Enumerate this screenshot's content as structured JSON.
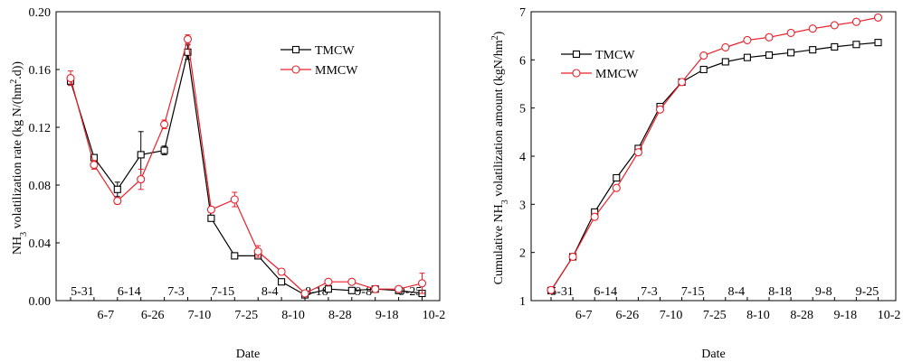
{
  "chart_data": [
    {
      "type": "line",
      "xlabel": "Date",
      "ylabel_main": "NH",
      "ylabel_sub": "3",
      "ylabel_mid": " volatilization rate (kg N/(hm",
      "ylabel_sup": "2",
      "ylabel_end": ".d))",
      "ylim": [
        0,
        0.2
      ],
      "yticks": [
        "0.00",
        "0.04",
        "0.08",
        "0.12",
        "0.16",
        "0.20"
      ],
      "x_labels_top": [
        "5-31",
        "6-14",
        "7-3",
        "7-15",
        "8-4",
        "8-18",
        "9-8",
        "9-25"
      ],
      "x_labels_bottom": [
        "6-7",
        "6-26",
        "7-10",
        "7-25",
        "8-10",
        "8-28",
        "9-18",
        "10-2"
      ],
      "legend_position": "top-right",
      "series": [
        {
          "name": "TMCW",
          "color": "#000000",
          "marker": "square",
          "values": [
            0.152,
            0.099,
            0.077,
            0.101,
            0.104,
            0.172,
            0.057,
            0.031,
            0.031,
            0.013,
            0.004,
            0.008,
            0.007,
            0.008,
            0.007,
            0.005
          ],
          "errors": [
            0.003,
            0.002,
            0.005,
            0.016,
            0.003,
            0.005,
            0.002,
            0.001,
            0.002,
            0.001,
            0.001,
            0.001,
            0.001,
            0.001,
            0.001,
            0.001
          ]
        },
        {
          "name": "MMCW",
          "color": "#e8202a",
          "marker": "circle",
          "values": [
            0.154,
            0.094,
            0.069,
            0.084,
            0.122,
            0.181,
            0.063,
            0.07,
            0.034,
            0.02,
            0.005,
            0.013,
            0.013,
            0.008,
            0.008,
            0.012
          ],
          "errors": [
            0.005,
            0.003,
            0.002,
            0.007,
            0.003,
            0.003,
            0.002,
            0.005,
            0.004,
            0.002,
            0.001,
            0.001,
            0.001,
            0.001,
            0.001,
            0.007
          ]
        }
      ]
    },
    {
      "type": "line",
      "xlabel": "Date",
      "ylabel_main": "Cumulative NH",
      "ylabel_sub": "3",
      "ylabel_mid": " volatilization amount  (kgN/hm",
      "ylabel_sup": "2",
      "ylabel_end": ")",
      "ylim": [
        1,
        7
      ],
      "yticks": [
        "1",
        "2",
        "3",
        "4",
        "5",
        "6",
        "7"
      ],
      "x_labels_top": [
        "5-31",
        "6-14",
        "7-3",
        "7-15",
        "8-4",
        "8-18",
        "9-8",
        "9-25"
      ],
      "x_labels_bottom": [
        "6-7",
        "6-26",
        "7-10",
        "7-25",
        "8-10",
        "8-28",
        "9-18",
        "10-2"
      ],
      "legend_position": "top-left",
      "series": [
        {
          "name": "TMCW",
          "color": "#000000",
          "marker": "square",
          "values": [
            1.21,
            1.91,
            2.84,
            3.55,
            4.16,
            5.03,
            5.54,
            5.8,
            5.96,
            6.05,
            6.1,
            6.15,
            6.21,
            6.27,
            6.32,
            6.36
          ]
        },
        {
          "name": "MMCW",
          "color": "#e8202a",
          "marker": "circle",
          "values": [
            1.22,
            1.91,
            2.74,
            3.34,
            4.08,
            4.97,
            5.54,
            6.09,
            6.26,
            6.41,
            6.47,
            6.56,
            6.65,
            6.72,
            6.79,
            6.88
          ]
        }
      ]
    }
  ]
}
